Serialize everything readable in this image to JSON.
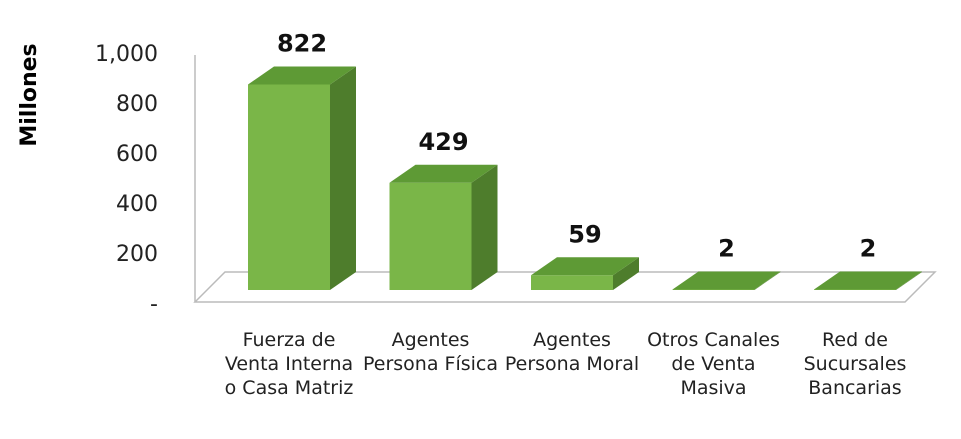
{
  "chart_data": {
    "type": "bar",
    "y_label": "Millones",
    "categories": [
      "Fuerza de Venta Interna o Casa Matriz",
      "Agentes Persona Física",
      "Agentes Persona Moral",
      "Otros Canales de Venta Masiva",
      "Red de Sucursales Bancarias"
    ],
    "values": [
      822,
      429,
      59,
      2,
      2
    ],
    "color": "#7ab648",
    "ylim": [
      0,
      1000
    ],
    "yticks": [
      {
        "value": 0,
        "label": "-"
      },
      200,
      400,
      600,
      800,
      {
        "value": 1000,
        "label": "1,000"
      }
    ]
  }
}
